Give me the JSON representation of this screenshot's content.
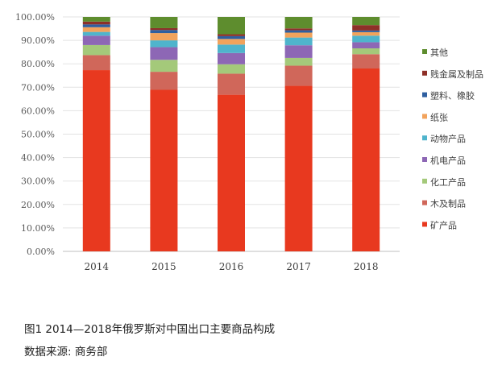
{
  "chart_data": {
    "type": "bar",
    "stacked": true,
    "categories": [
      "2014",
      "2015",
      "2016",
      "2017",
      "2018"
    ],
    "ylim": [
      0,
      100
    ],
    "yticks": [
      "0.00%",
      "10.00%",
      "20.00%",
      "30.00%",
      "40.00%",
      "50.00%",
      "60.00%",
      "70.00%",
      "80.00%",
      "90.00%",
      "100.00%"
    ],
    "grid": true,
    "legend_position": "right",
    "series": [
      {
        "name": "矿产品",
        "color": "#e8391f",
        "values": [
          77.3,
          68.9,
          66.8,
          70.6,
          78.0
        ]
      },
      {
        "name": "木及制品",
        "color": "#d0675a",
        "values": [
          6.4,
          7.7,
          9.0,
          8.6,
          6.1
        ]
      },
      {
        "name": "化工产品",
        "color": "#a4c97a",
        "values": [
          4.3,
          5.1,
          4.0,
          3.3,
          2.5
        ]
      },
      {
        "name": "机电产品",
        "color": "#8d67b5",
        "values": [
          4.0,
          5.4,
          4.8,
          5.4,
          2.6
        ]
      },
      {
        "name": "动物产品",
        "color": "#4fb4cc",
        "values": [
          1.6,
          2.9,
          3.6,
          3.3,
          2.8
        ]
      },
      {
        "name": "纸张",
        "color": "#f2a35c",
        "values": [
          2.0,
          3.1,
          2.4,
          2.1,
          1.5
        ]
      },
      {
        "name": "塑料、橡胶",
        "color": "#2e5fa0",
        "values": [
          1.2,
          1.3,
          1.2,
          1.0,
          0.7
        ]
      },
      {
        "name": "贱金属及制品",
        "color": "#8e3028",
        "values": [
          1.2,
          0.8,
          0.8,
          0.8,
          2.3
        ]
      },
      {
        "name": "其他",
        "color": "#5e8d2e",
        "values": [
          2.0,
          4.8,
          7.4,
          4.9,
          3.5
        ]
      }
    ]
  },
  "caption": {
    "title": "图1  2014—2018年俄罗斯对中国出口主要商品构成",
    "source": "数据来源: 商务部"
  }
}
